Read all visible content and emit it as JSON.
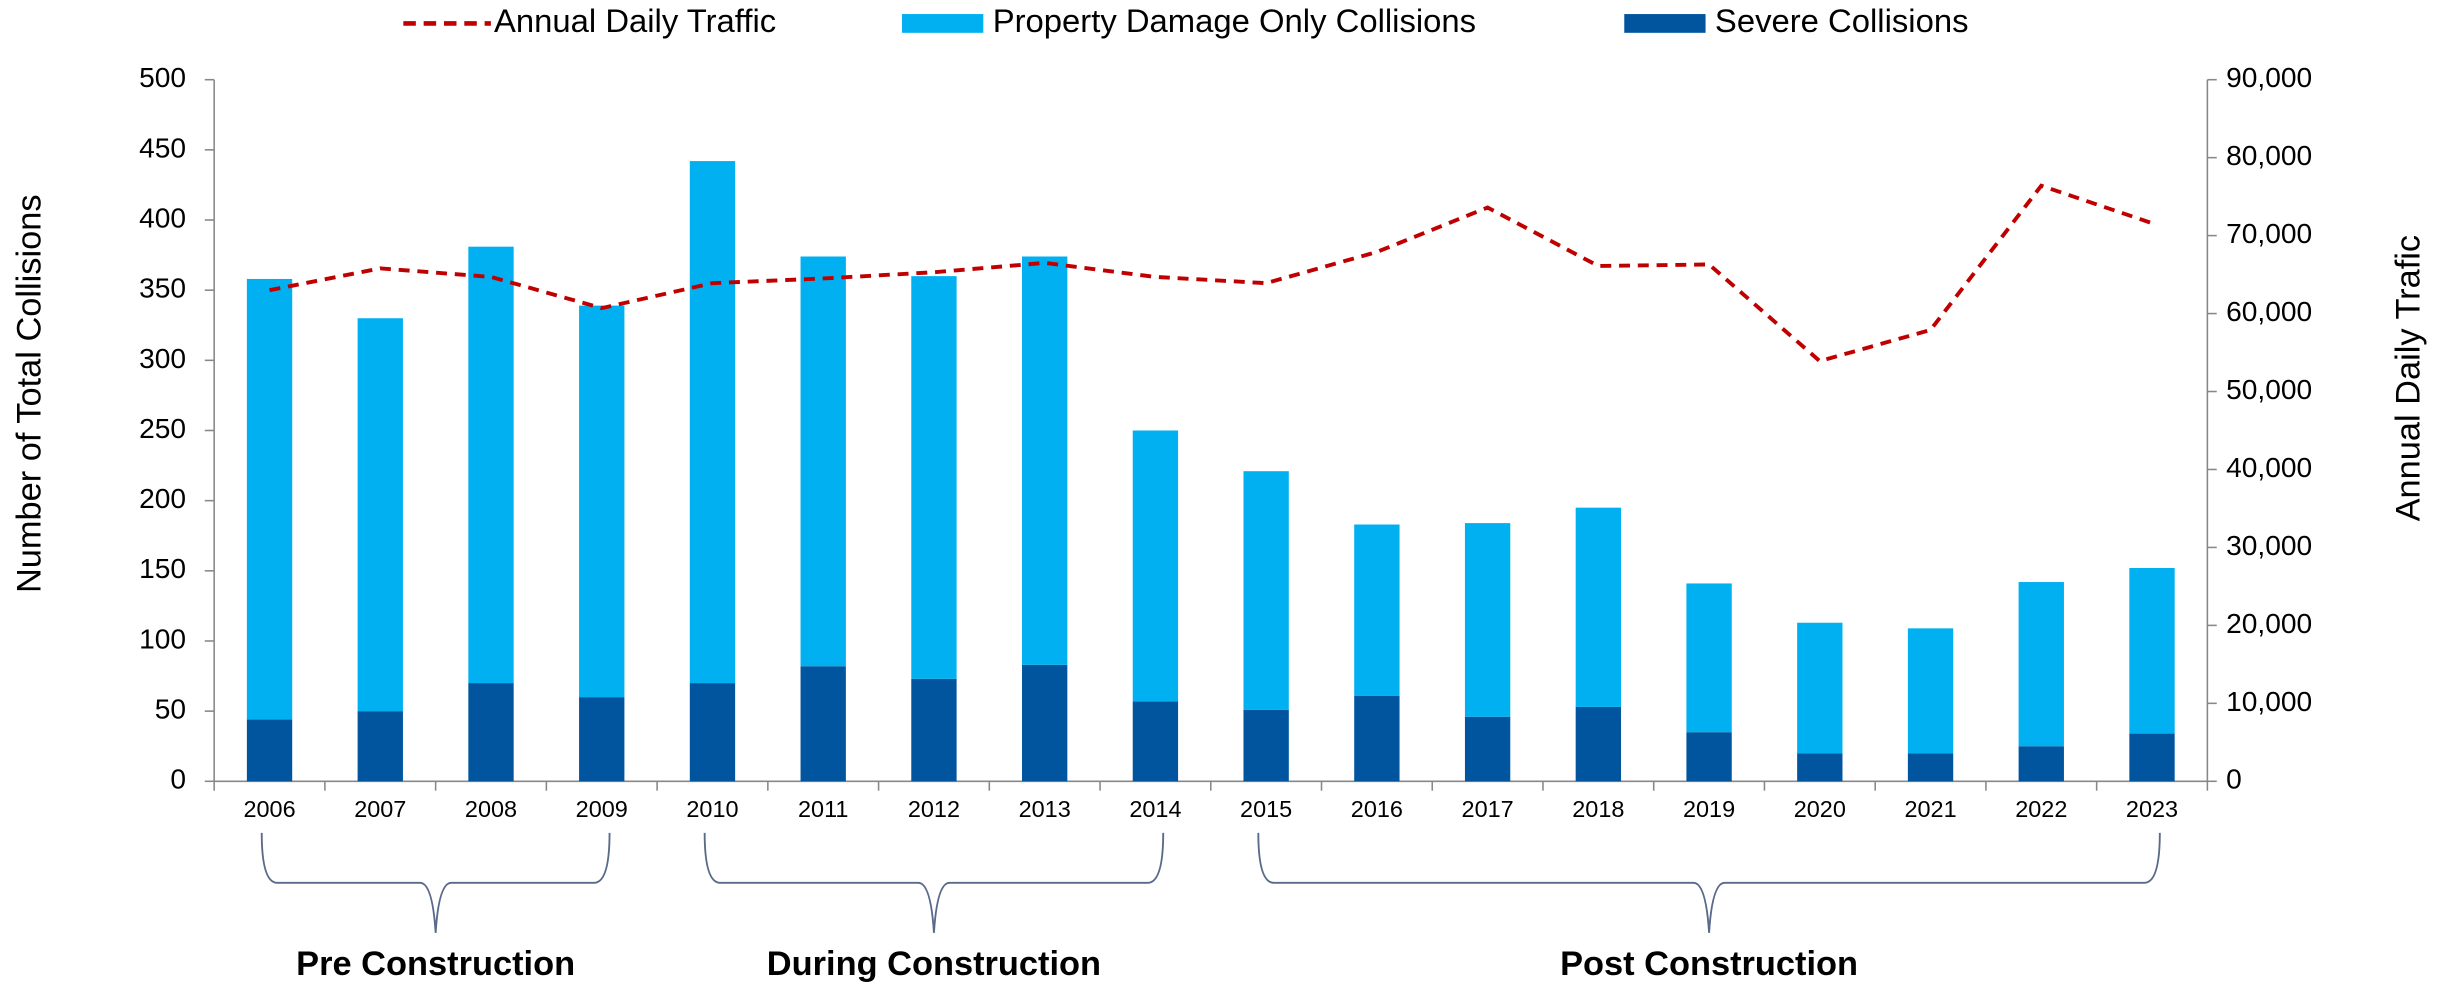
{
  "chart_data": {
    "type": "bar",
    "stacked": true,
    "categories": [
      "2006",
      "2007",
      "2008",
      "2009",
      "2010",
      "2011",
      "2012",
      "2013",
      "2014",
      "2015",
      "2016",
      "2017",
      "2018",
      "2019",
      "2020",
      "2021",
      "2022",
      "2023"
    ],
    "series": [
      {
        "name": "Severe Collisions",
        "color": "#00559e",
        "type": "bar",
        "values": [
          44,
          50,
          70,
          60,
          70,
          82,
          73,
          83,
          57,
          51,
          61,
          46,
          53,
          35,
          20,
          20,
          25,
          34
        ]
      },
      {
        "name": "Property Damage Only Collisions",
        "color": "#00b0f0",
        "type": "bar",
        "values": [
          314,
          280,
          311,
          279,
          372,
          292,
          287,
          291,
          193,
          170,
          122,
          138,
          142,
          106,
          93,
          89,
          117,
          118
        ]
      },
      {
        "name": "Annual Daily Traffic",
        "color": "#c00000",
        "type": "line",
        "axis": "y2",
        "dashed": true,
        "values": [
          63000,
          65800,
          64700,
          60700,
          63900,
          64500,
          65300,
          66500,
          64700,
          63900,
          67900,
          73600,
          66100,
          66300,
          53900,
          57900,
          76400,
          71600
        ]
      }
    ],
    "ylabel": "Number of Total Collisions",
    "y2label": "Annual Daily Trafic",
    "ylim": [
      0,
      500
    ],
    "yticks": [
      0,
      50,
      100,
      150,
      200,
      250,
      300,
      350,
      400,
      450,
      500
    ],
    "y2lim": [
      0,
      90000
    ],
    "y2ticks": [
      0,
      {
        "value": 10000,
        "label": "10,000"
      },
      {
        "value": 20000,
        "label": "20,000"
      },
      {
        "value": 30000,
        "label": "30,000"
      },
      {
        "value": 40000,
        "label": "40,000"
      },
      {
        "value": 50000,
        "label": "50,000"
      },
      {
        "value": 60000,
        "label": "60,000"
      },
      {
        "value": 70000,
        "label": "70,000"
      },
      {
        "value": 80000,
        "label": "80,000"
      },
      {
        "value": 90000,
        "label": "90,000"
      }
    ],
    "legend": "top",
    "phases": [
      {
        "label": "Pre Construction",
        "first": "2006",
        "last": "2009"
      },
      {
        "label": "During Construction",
        "first": "2010",
        "last": "2014"
      },
      {
        "label": "Post Construction",
        "first": "2015",
        "last": "2023"
      }
    ]
  }
}
